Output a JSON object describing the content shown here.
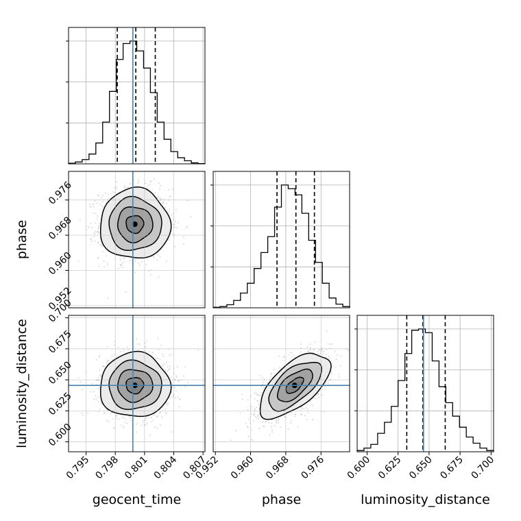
{
  "chart_data": {
    "type": "corner",
    "parameters": [
      "geocent_time",
      "phase",
      "luminosity_distance"
    ],
    "axis_labels": {
      "x": [
        "geocent_time",
        "phase",
        "luminosity_distance"
      ],
      "y": [
        "phase",
        "luminosity_distance"
      ]
    },
    "ranges": {
      "geocent_time": [
        0.7932,
        0.8072
      ],
      "phase": [
        0.9515,
        0.9825
      ],
      "luminosity_distance": [
        0.592,
        0.702
      ]
    },
    "ticks": {
      "geocent_time": [
        0.795,
        0.798,
        0.801,
        0.804,
        0.807
      ],
      "phase": [
        0.952,
        0.96,
        0.968,
        0.976
      ],
      "luminosity_distance": [
        0.6,
        0.625,
        0.65,
        0.675,
        0.7
      ]
    },
    "tick_labels": {
      "geocent_time": [
        "0.795",
        "0.798",
        "0.801",
        "0.804",
        "0.807"
      ],
      "phase": [
        "0.952",
        "0.960",
        "0.968",
        "0.976"
      ],
      "luminosity_distance": [
        "0.600",
        "0.625",
        "0.650",
        "0.675",
        "0.700"
      ]
    },
    "truths": {
      "geocent_time": 0.7998,
      "luminosity_distance": 0.6455
    },
    "quantiles": {
      "geocent_time": [
        0.7982,
        0.8001,
        0.8021
      ],
      "phase": [
        0.966,
        0.9703,
        0.9745
      ],
      "luminosity_distance": [
        0.632,
        0.645,
        0.663
      ]
    },
    "histograms": {
      "geocent_time": {
        "range": [
          0.7932,
          0.8072
        ],
        "counts": [
          0.005,
          0.015,
          0.035,
          0.08,
          0.17,
          0.34,
          0.59,
          0.85,
          0.98,
          1.0,
          0.92,
          0.78,
          0.58,
          0.34,
          0.2,
          0.1,
          0.05,
          0.025,
          0.008,
          0.002
        ]
      },
      "phase": {
        "range": [
          0.9515,
          0.9825
        ],
        "counts": [
          0.004,
          0.01,
          0.025,
          0.06,
          0.12,
          0.2,
          0.32,
          0.45,
          0.58,
          0.82,
          1.0,
          0.97,
          0.92,
          0.77,
          0.55,
          0.37,
          0.2,
          0.08,
          0.03,
          0.01
        ]
      },
      "luminosity_distance": {
        "range": [
          0.592,
          0.702
        ],
        "counts": [
          0.01,
          0.03,
          0.06,
          0.15,
          0.24,
          0.37,
          0.58,
          0.8,
          0.99,
          1.0,
          0.97,
          0.74,
          0.53,
          0.4,
          0.29,
          0.2,
          0.12,
          0.07,
          0.03,
          0.01
        ]
      }
    },
    "pairs": [
      {
        "x": "geocent_time",
        "y": "phase",
        "center": [
          0.8,
          0.9705
        ],
        "std": [
          0.0018,
          0.004
        ],
        "corr": 0.0
      },
      {
        "x": "geocent_time",
        "y": "luminosity_distance",
        "center": [
          0.8,
          0.6455
        ],
        "std": [
          0.0018,
          0.013
        ],
        "corr": 0.0
      },
      {
        "x": "phase",
        "y": "luminosity_distance",
        "center": [
          0.97,
          0.6455
        ],
        "std": [
          0.004,
          0.013
        ],
        "corr": 0.62
      }
    ],
    "contour_levels": [
      0.5,
      1.0,
      1.5,
      2.0
    ],
    "grid": true,
    "colors": {
      "line": "#000000",
      "truth": "#4682b4",
      "scatter": "#9a9a9a",
      "grid": "#b0b0b0"
    }
  }
}
